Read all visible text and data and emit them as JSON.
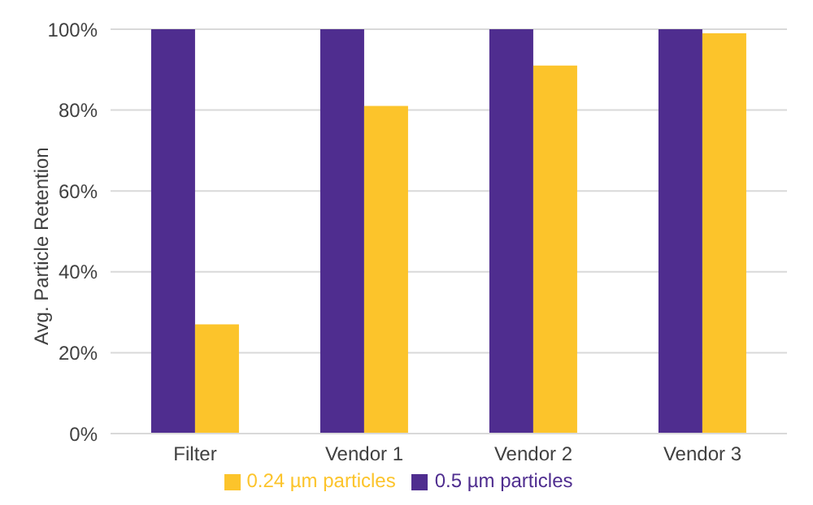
{
  "chart_data": {
    "type": "bar",
    "ylabel": "Avg. Particle Retention",
    "categories": [
      "Filter",
      "Vendor 1",
      "Vendor 2",
      "Vendor 3"
    ],
    "series": [
      {
        "name": "0.5 µm particles",
        "color": "#4f2d8f",
        "values": [
          100,
          100,
          100,
          100
        ]
      },
      {
        "name": "0.24 µm particles",
        "color": "#fcc42b",
        "values": [
          27,
          81,
          91,
          99
        ]
      }
    ],
    "ylim": [
      0,
      100
    ],
    "yticks": [
      {
        "value": 0,
        "label": "0%"
      },
      {
        "value": 20,
        "label": "20%"
      },
      {
        "value": 40,
        "label": "40%"
      },
      {
        "value": 60,
        "label": "60%"
      },
      {
        "value": 80,
        "label": "80%"
      },
      {
        "value": 100,
        "label": "100%"
      }
    ],
    "grid": "y",
    "legend": "bottom"
  }
}
